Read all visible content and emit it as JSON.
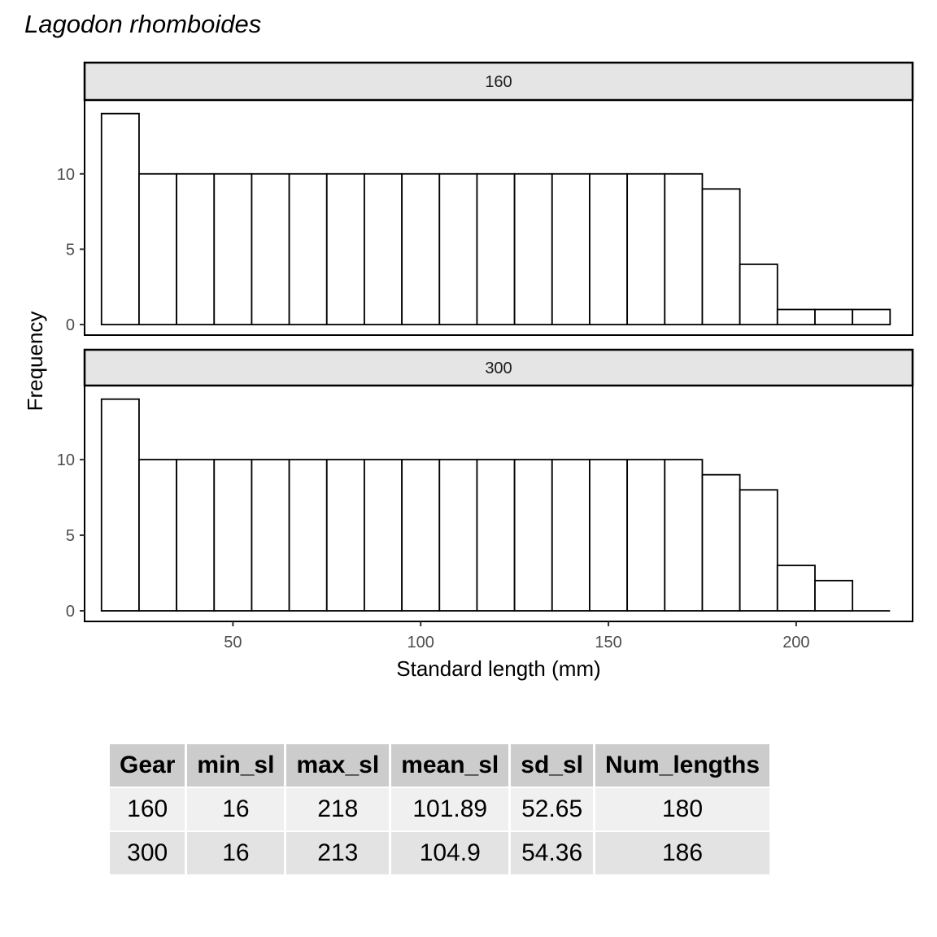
{
  "chart_data": {
    "type": "bar",
    "title": "Lagodon rhomboides",
    "xlabel": "Standard length (mm)",
    "ylabel": "Frequency",
    "xlim": [
      10.5,
      231
    ],
    "ylim": [
      -0.7,
      14.9
    ],
    "x_ticks": [
      50,
      100,
      150,
      200
    ],
    "y_ticks": [
      0,
      5,
      10
    ],
    "bin_width": 10,
    "panels": [
      {
        "label": "160",
        "bin_starts": [
          15,
          25,
          35,
          45,
          55,
          65,
          75,
          85,
          95,
          105,
          115,
          125,
          135,
          145,
          155,
          165,
          175,
          185,
          195,
          205,
          215
        ],
        "values": [
          14,
          10,
          10,
          10,
          10,
          10,
          10,
          10,
          10,
          10,
          10,
          10,
          10,
          10,
          10,
          10,
          9,
          4,
          1,
          1,
          1
        ]
      },
      {
        "label": "300",
        "bin_starts": [
          15,
          25,
          35,
          45,
          55,
          65,
          75,
          85,
          95,
          105,
          115,
          125,
          135,
          145,
          155,
          165,
          175,
          185,
          195,
          205,
          215
        ],
        "values": [
          14,
          10,
          10,
          10,
          10,
          10,
          10,
          10,
          10,
          10,
          10,
          10,
          10,
          10,
          10,
          10,
          9,
          8,
          3,
          2,
          0
        ]
      }
    ],
    "grid": false
  },
  "table": {
    "headers": [
      "Gear",
      "min_sl",
      "max_sl",
      "mean_sl",
      "sd_sl",
      "Num_lengths"
    ],
    "rows": [
      [
        "160",
        "16",
        "218",
        "101.89",
        "52.65",
        "180"
      ],
      [
        "300",
        "16",
        "213",
        "104.9",
        "54.36",
        "186"
      ]
    ]
  }
}
